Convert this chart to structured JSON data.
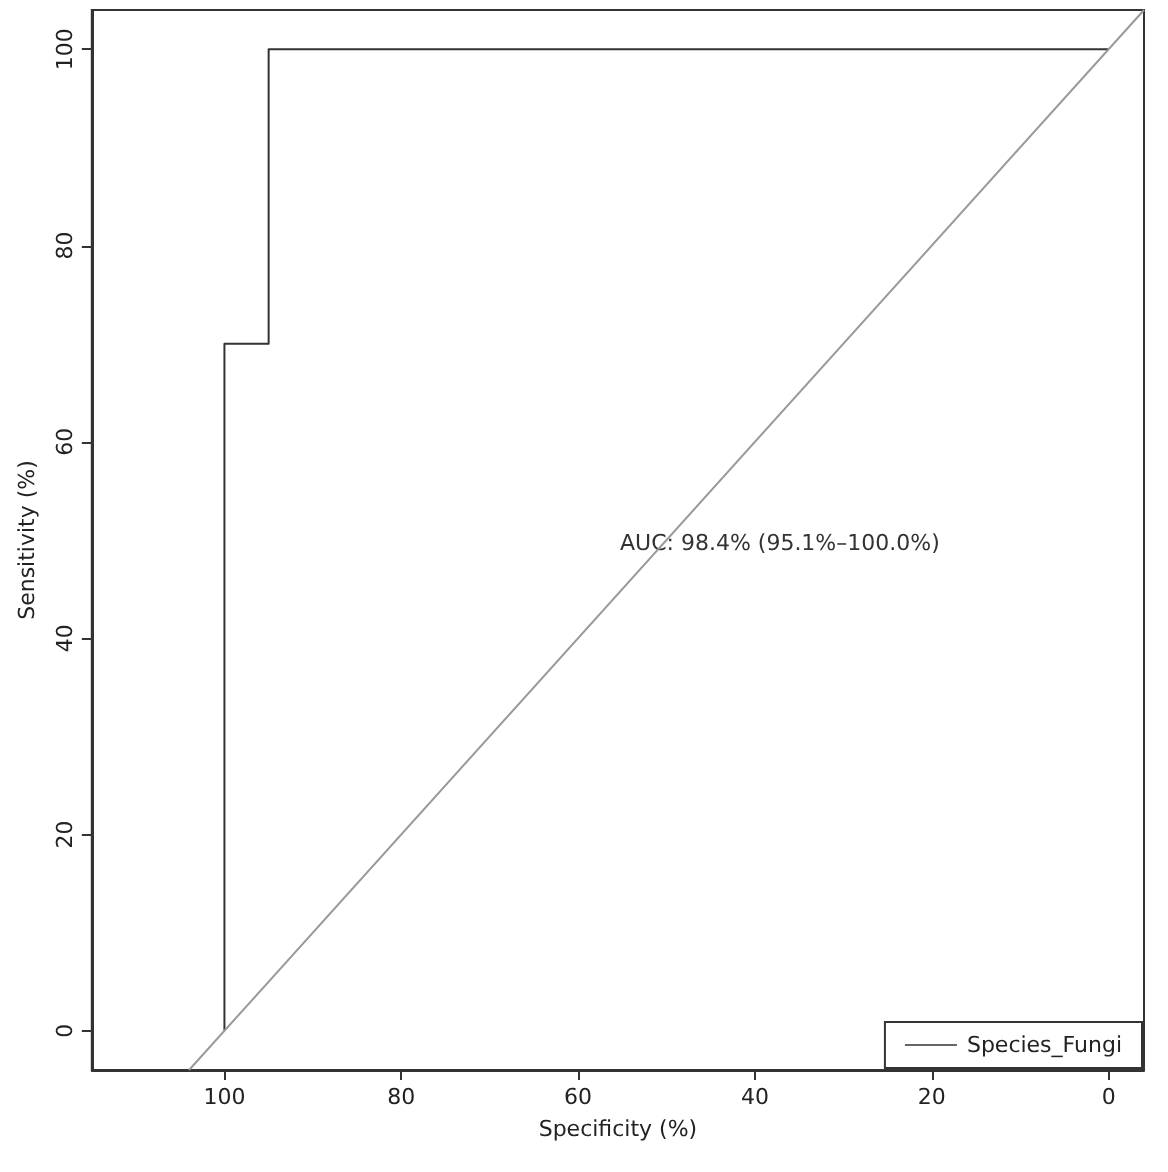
{
  "chart_data": {
    "type": "step",
    "xlabel": "Specificity (%)",
    "ylabel": "Sensitivity (%)",
    "xlim": [
      115,
      -4
    ],
    "xticks": [
      100,
      80,
      60,
      40,
      20,
      0
    ],
    "ylim": [
      -4,
      104
    ],
    "yticks": [
      0,
      20,
      40,
      60,
      80,
      100
    ],
    "series": [
      {
        "name": "Species_Fungi",
        "color": "#333333",
        "x": [
          100,
          100,
          95,
          95,
          0
        ],
        "values": [
          0,
          70,
          70,
          100,
          100
        ]
      },
      {
        "type": "line",
        "color": "#999999",
        "x": [
          104,
          -4
        ],
        "values": [
          -4,
          104
        ]
      }
    ],
    "annotations": [
      "AUC: 98.4% (95.1%–100.0%)"
    ],
    "legend": "bottom right",
    "grid": false,
    "marker": "none",
    "line_style": "solid"
  }
}
